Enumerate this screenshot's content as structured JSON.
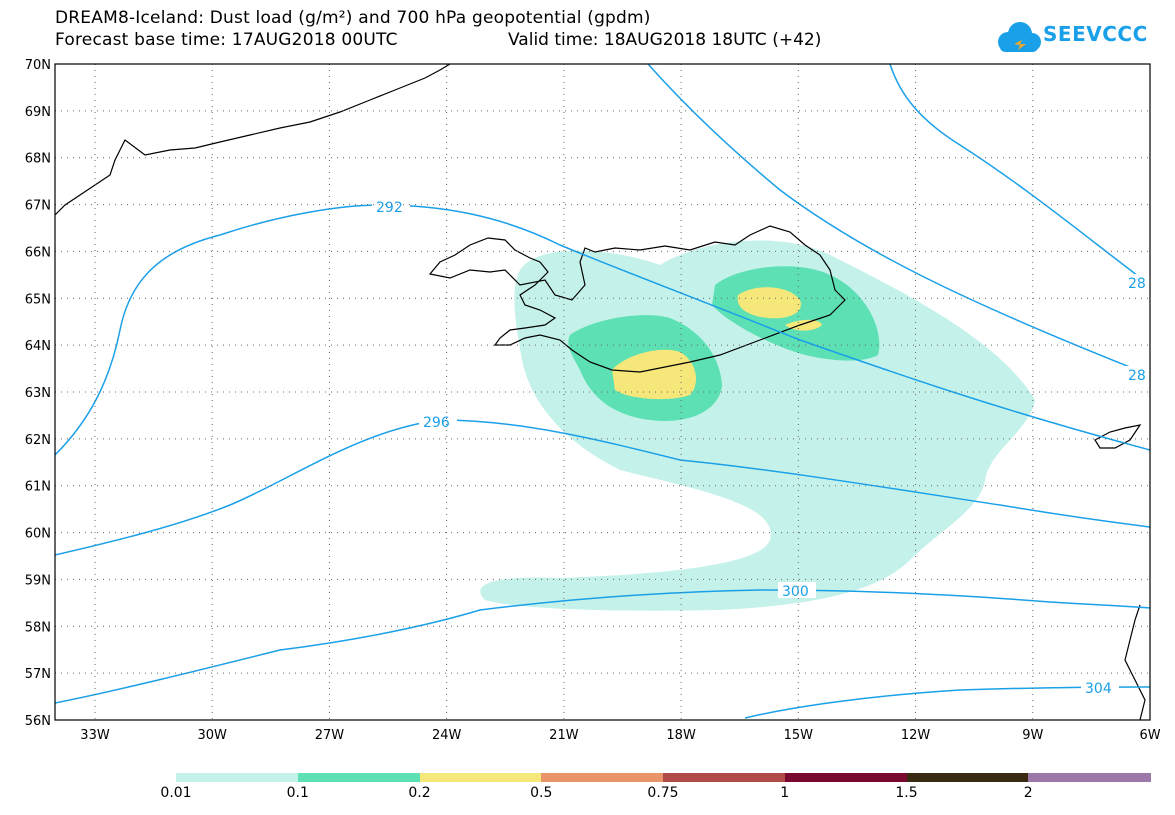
{
  "title": {
    "line1": "DREAM8-Iceland: Dust load (g/m²) and 700 hPa geopotential (gpdm)",
    "base_time": "Forecast base time: 17AUG2018 00UTC",
    "valid_time": "Valid time: 18AUG2018 18UTC (+42)"
  },
  "logo": {
    "text": "SEEVCCC",
    "icon": "cloud-icon",
    "color": "#1aa0e8"
  },
  "axes": {
    "lat_labels": [
      "70N",
      "69N",
      "68N",
      "67N",
      "66N",
      "65N",
      "64N",
      "63N",
      "62N",
      "61N",
      "60N",
      "59N",
      "58N",
      "57N",
      "56N"
    ],
    "lon_labels": [
      "33W",
      "30W",
      "27W",
      "24W",
      "21W",
      "18W",
      "15W",
      "12W",
      "9W",
      "6W"
    ]
  },
  "contours": {
    "color": "#1aa0e8",
    "labels": [
      "292",
      "296",
      "300",
      "304",
      "28",
      "28"
    ]
  },
  "colorbar": {
    "colors": [
      "#c4f2ea",
      "#5de0b4",
      "#f5e77a",
      "#e9956a",
      "#b04b47",
      "#7a0a30",
      "#3a2a12",
      "#9b78a8"
    ],
    "labels": [
      "0.01",
      "0.1",
      "0.2",
      "0.5",
      "0.75",
      "1",
      "1.5",
      "2"
    ]
  }
}
